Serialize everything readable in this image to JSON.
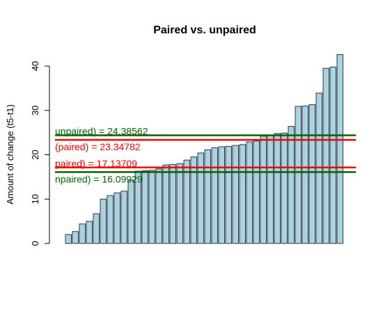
{
  "chart_data": {
    "type": "bar",
    "title": "Paired vs. unpaired",
    "xlabel": "",
    "ylabel": "Amount of change (t5-t1)",
    "ylim": [
      0,
      43
    ],
    "yticks": [
      "0",
      "10",
      "20",
      "30",
      "40"
    ],
    "grid": false,
    "bar_fill": "#a6d4e6",
    "bar_stroke": "#333333",
    "values": [
      2.0,
      2.7,
      4.4,
      5.0,
      6.7,
      10.0,
      10.8,
      11.4,
      11.8,
      14.3,
      16.3,
      16.4,
      16.5,
      16.8,
      17.7,
      17.8,
      18.0,
      18.8,
      19.5,
      20.4,
      21.1,
      21.6,
      21.8,
      21.9,
      22.1,
      22.3,
      22.9,
      23.1,
      24.2,
      24.4,
      24.8,
      24.9,
      26.4,
      30.9,
      31.0,
      31.3,
      33.9,
      39.5,
      39.8,
      42.6
    ],
    "reference_lines": [
      {
        "label": "unpaired) =  24.38562",
        "value": 24.38562,
        "color": "#006400"
      },
      {
        "label": "(paired) =  23.34782",
        "value": 23.34782,
        "color": "#ff0000"
      },
      {
        "label": "paired) =  17.13709",
        "value": 17.13709,
        "color": "#ff0000"
      },
      {
        "label": "npaired) =  16.09929",
        "value": 16.09929,
        "color": "#006400"
      }
    ]
  }
}
